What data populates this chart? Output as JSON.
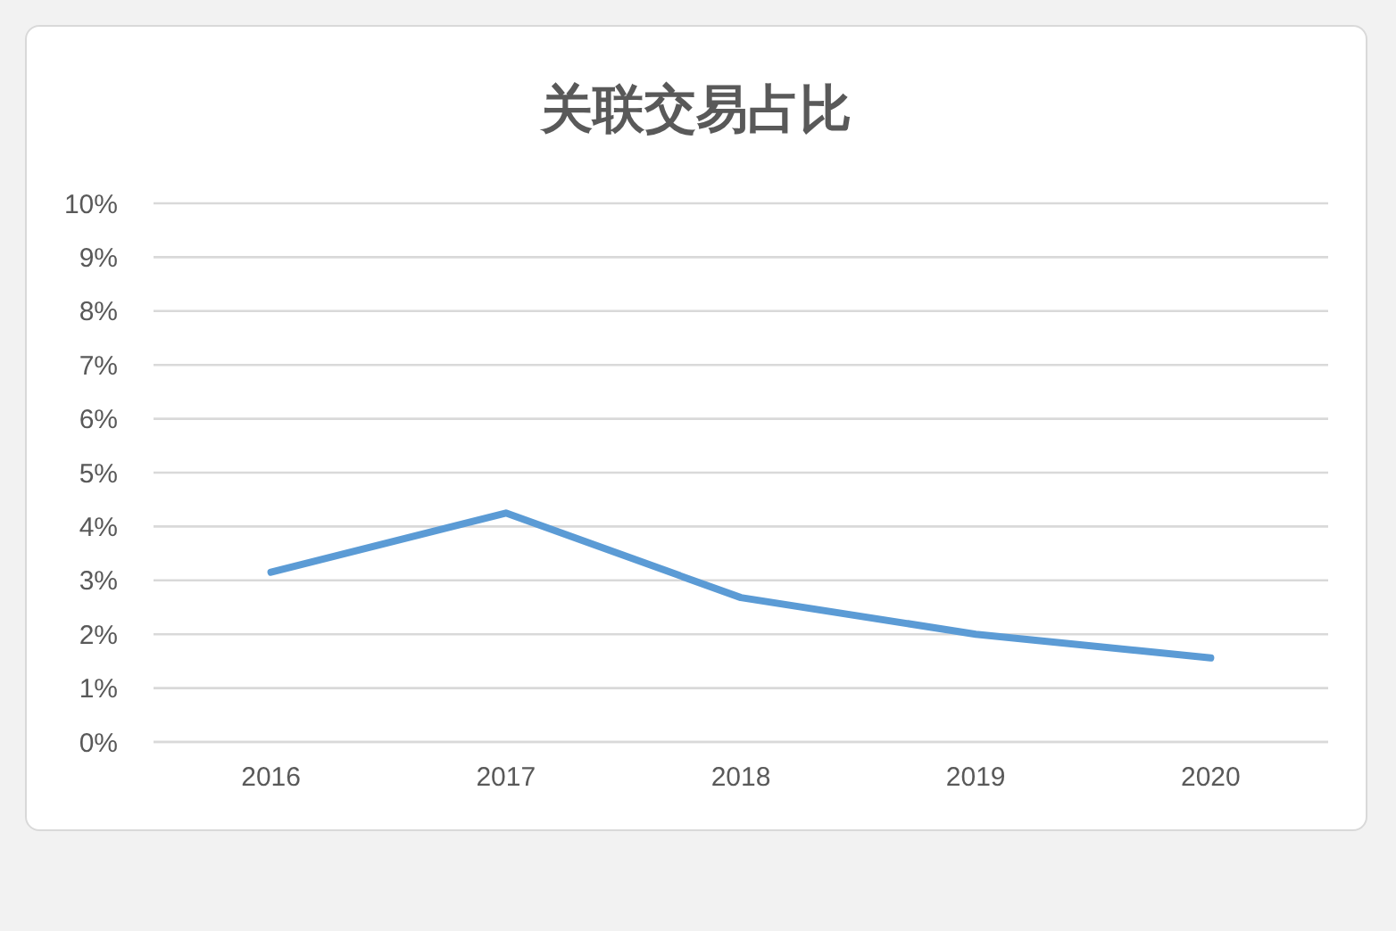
{
  "chart_data": {
    "type": "line",
    "title": "关联交易占比",
    "categories": [
      "2016",
      "2017",
      "2018",
      "2019",
      "2020"
    ],
    "series": [
      {
        "color": "#5b9bd5",
        "values": [
          3.15,
          4.25,
          2.68,
          2.0,
          1.56
        ]
      }
    ],
    "ylim": [
      0,
      10
    ],
    "yticks": [
      {
        "value": 0,
        "label": "0%"
      },
      {
        "value": 1,
        "label": "1%"
      },
      {
        "value": 2,
        "label": "2%"
      },
      {
        "value": 3,
        "label": "3%"
      },
      {
        "value": 4,
        "label": "4%"
      },
      {
        "value": 5,
        "label": "5%"
      },
      {
        "value": 6,
        "label": "6%"
      },
      {
        "value": 7,
        "label": "7%"
      },
      {
        "value": 8,
        "label": "8%"
      },
      {
        "value": 9,
        "label": "9%"
      },
      {
        "value": 10,
        "label": "10%"
      }
    ],
    "grid": "y",
    "marker": "none",
    "line_style": "solid"
  }
}
